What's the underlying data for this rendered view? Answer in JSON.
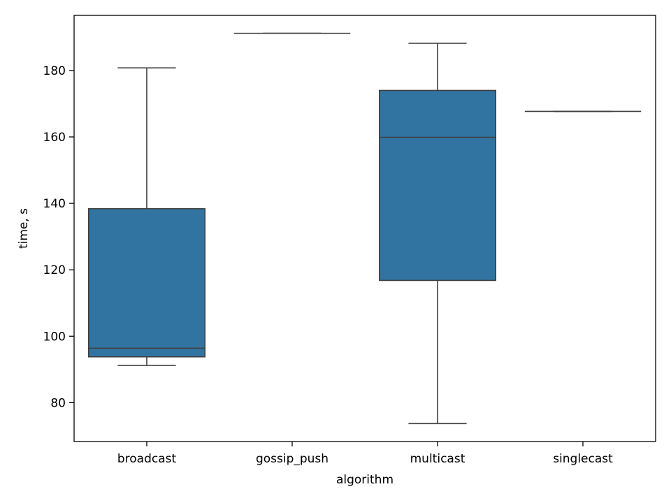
{
  "chart_data": {
    "type": "box",
    "title": "",
    "xlabel": "algorithm",
    "ylabel": "time, s",
    "categories": [
      "broadcast",
      "gossip_push",
      "multicast",
      "singlecast"
    ],
    "boxes": [
      {
        "category": "broadcast",
        "whisker_low": 91.2,
        "q1": 93.8,
        "median": 96.4,
        "q3": 138.4,
        "whisker_high": 180.8
      },
      {
        "category": "gossip_push",
        "whisker_low": 191.2,
        "q1": 191.2,
        "median": 191.2,
        "q3": 191.2,
        "whisker_high": 191.2
      },
      {
        "category": "multicast",
        "whisker_low": 73.7,
        "q1": 116.8,
        "median": 159.9,
        "q3": 174.0,
        "whisker_high": 188.2
      },
      {
        "category": "singlecast",
        "whisker_low": 167.7,
        "q1": 167.7,
        "median": 167.7,
        "q3": 167.7,
        "whisker_high": 167.7
      }
    ],
    "y_ticks": [
      80,
      100,
      120,
      140,
      160,
      180
    ],
    "ylim": [
      68.3,
      196.6
    ],
    "box_color": "#3274a1",
    "line_color": "#3f3f3f",
    "grid": false,
    "legend": "none"
  }
}
